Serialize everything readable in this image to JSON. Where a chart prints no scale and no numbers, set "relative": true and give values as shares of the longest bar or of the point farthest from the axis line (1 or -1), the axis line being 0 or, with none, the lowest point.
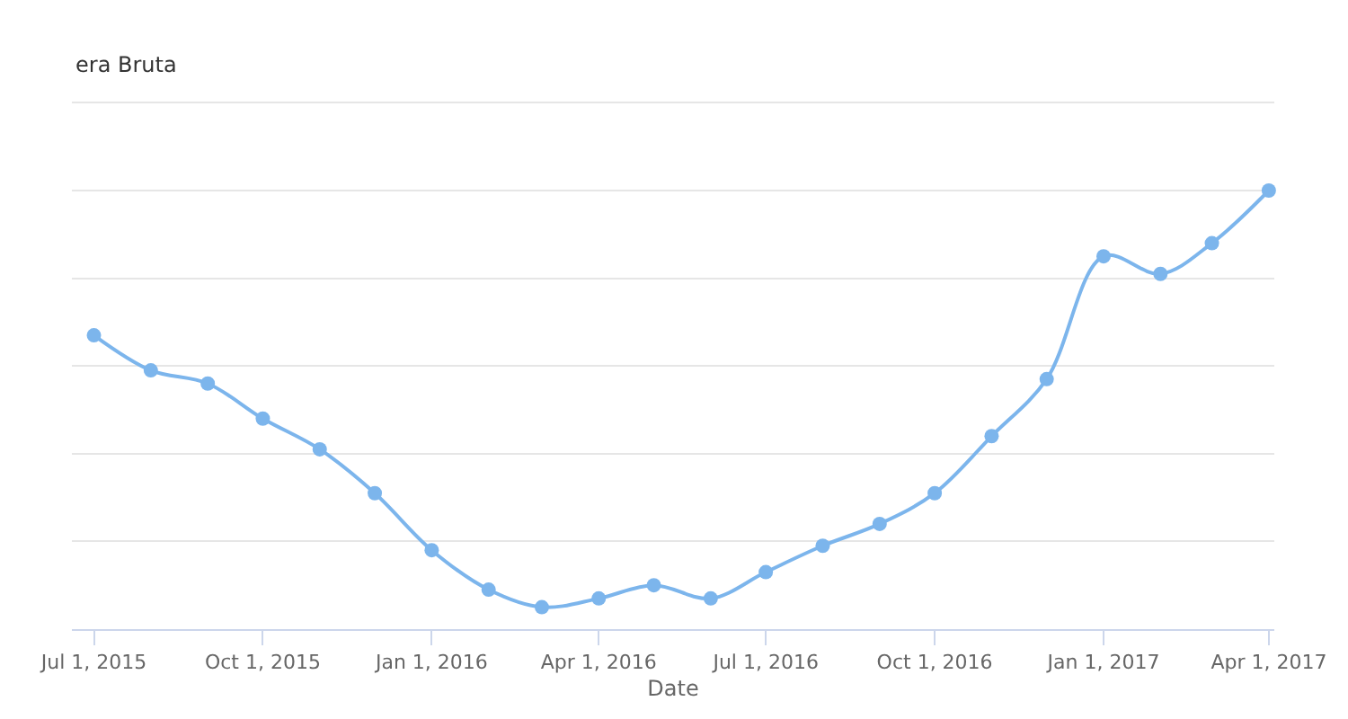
{
  "chart_data": {
    "type": "line",
    "annotations": [
      "era Bruta"
    ],
    "xlabel": "Date",
    "x": [
      "2015-07-01",
      "2015-08-01",
      "2015-09-01",
      "2015-10-01",
      "2015-11-01",
      "2015-12-01",
      "2016-01-01",
      "2016-02-01",
      "2016-03-01",
      "2016-04-01",
      "2016-05-01",
      "2016-06-01",
      "2016-07-01",
      "2016-08-01",
      "2016-09-01",
      "2016-10-01",
      "2016-11-01",
      "2016-12-01",
      "2017-01-01",
      "2017-02-01",
      "2017-03-01",
      "2017-04-01"
    ],
    "series": [
      {
        "color": "#7cb5ec",
        "values": [
          0.67,
          0.59,
          0.56,
          0.48,
          0.41,
          0.31,
          0.18,
          0.09,
          0.05,
          0.07,
          0.1,
          0.07,
          0.13,
          0.19,
          0.24,
          0.31,
          0.44,
          0.57,
          0.85,
          0.81,
          0.88,
          1
        ]
      }
    ],
    "relative": true,
    "xlim": [
      "2015-06-19",
      "2017-04-04"
    ],
    "xticks": [
      {
        "value": "2015-07-01",
        "label": "Jul 1, 2015"
      },
      {
        "value": "2015-10-01",
        "label": "Oct 1, 2015"
      },
      {
        "value": "2016-01-01",
        "label": "Jan 1, 2016"
      },
      {
        "value": "2016-04-01",
        "label": "Apr 1, 2016"
      },
      {
        "value": "2016-07-01",
        "label": "Jul 1, 2016"
      },
      {
        "value": "2016-10-01",
        "label": "Oct 1, 2016"
      },
      {
        "value": "2017-01-01",
        "label": "Jan 1, 2017"
      },
      {
        "value": "2017-04-01",
        "label": "Apr 1, 2017"
      }
    ],
    "grid": "y",
    "marker": "circle",
    "line_style": "solid"
  }
}
